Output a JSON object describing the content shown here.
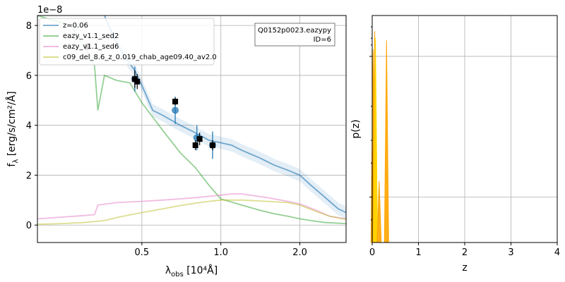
{
  "chart_data": [
    {
      "type": "line",
      "offset_label": "1e−8",
      "ylabel_main": "f",
      "ylabel_sub": "λ",
      "ylabel_units": " [erg/s/cm²/Å]",
      "xlabel_main": "λ",
      "xlabel_sub": "obs",
      "xlabel_units": " [10⁴Å]",
      "xscale": "log",
      "xlim": [
        0.2,
        3.0
      ],
      "ylim": [
        -0.7,
        8.4
      ],
      "x_ticks": [
        {
          "v": 0.5,
          "label": "0.5"
        },
        {
          "v": 1.0,
          "label": "1.0"
        },
        {
          "v": 2.0,
          "label": "2.0"
        }
      ],
      "y_ticks": [
        {
          "v": 0,
          "label": "0"
        },
        {
          "v": 2,
          "label": "2"
        },
        {
          "v": 4,
          "label": "4"
        },
        {
          "v": 6,
          "label": "6"
        },
        {
          "v": 8,
          "label": "8"
        }
      ],
      "grid": true,
      "legend_position": "upper-left",
      "annotation": {
        "line1": "Q0152p0023.eazypy",
        "line2": "ID=6"
      },
      "series": [
        {
          "name": "z=0.06",
          "color": "#1f77b4",
          "x": [
            0.36,
            0.4,
            0.44,
            0.47,
            0.5,
            0.55,
            0.6,
            0.7,
            0.8,
            0.9,
            1.0,
            1.1,
            1.2,
            1.4,
            1.6,
            1.8,
            2.0,
            2.2,
            2.5,
            2.8,
            3.0
          ],
          "y": [
            8.5,
            7.3,
            6.6,
            6.2,
            5.6,
            4.6,
            4.4,
            4.0,
            3.7,
            3.4,
            3.3,
            3.2,
            3.0,
            2.7,
            2.4,
            2.2,
            2.0,
            1.6,
            1.1,
            0.65,
            0.5
          ],
          "band": 0.25
        },
        {
          "name": "eazy_v1.1_sed2",
          "color": "#2ca02c",
          "x": [
            0.2,
            0.27,
            0.33,
            0.34,
            0.36,
            0.4,
            0.45,
            0.5,
            0.6,
            0.7,
            0.8,
            0.9,
            1.0,
            1.2,
            1.4,
            1.6,
            1.8,
            2.0,
            2.2,
            2.5,
            3.0
          ],
          "y": [
            8.5,
            8.0,
            6.4,
            4.6,
            6.0,
            5.8,
            5.7,
            4.9,
            3.8,
            2.9,
            2.3,
            1.6,
            1.05,
            0.8,
            0.6,
            0.45,
            0.35,
            0.25,
            0.18,
            0.1,
            0.06
          ]
        },
        {
          "name": "eazy_v1.1_sed6",
          "color": "#e377c2",
          "x": [
            0.2,
            0.25,
            0.3,
            0.33,
            0.34,
            0.4,
            0.5,
            0.6,
            0.7,
            0.8,
            0.9,
            1.0,
            1.1,
            1.2,
            1.5,
            1.8,
            2.0,
            2.3,
            2.6,
            3.0
          ],
          "y": [
            0.25,
            0.32,
            0.38,
            0.42,
            0.8,
            0.9,
            0.95,
            1.0,
            1.05,
            1.1,
            1.15,
            1.2,
            1.25,
            1.25,
            1.1,
            0.95,
            0.85,
            0.6,
            0.35,
            0.25
          ]
        },
        {
          "name": "c09_del_8.6_z_0.019_chab_age09.40_av2.0",
          "color": "#bcbd22",
          "x": [
            0.2,
            0.25,
            0.3,
            0.36,
            0.4,
            0.5,
            0.6,
            0.7,
            0.8,
            0.9,
            1.0,
            1.2,
            1.5,
            1.8,
            2.0,
            2.3,
            2.6,
            3.0
          ],
          "y": [
            0.03,
            0.06,
            0.1,
            0.18,
            0.3,
            0.5,
            0.65,
            0.78,
            0.88,
            0.95,
            1.0,
            1.0,
            0.95,
            0.9,
            0.8,
            0.55,
            0.35,
            0.22
          ]
        }
      ],
      "observed_points": [
        {
          "x": 0.31,
          "y": 7.15,
          "err": 0.15
        },
        {
          "x": 0.47,
          "y": 5.85,
          "err": 0.35
        },
        {
          "x": 0.48,
          "y": 5.75,
          "err": 0.3
        },
        {
          "x": 0.67,
          "y": 4.95,
          "err": 0.15
        },
        {
          "x": 0.8,
          "y": 3.2,
          "err": 0.2
        },
        {
          "x": 0.83,
          "y": 3.45,
          "err": 0.25
        },
        {
          "x": 0.93,
          "y": 3.2,
          "err": 0.2
        }
      ],
      "model_points": [
        {
          "x": 0.47,
          "y": 5.85,
          "err": 0.5
        },
        {
          "x": 0.67,
          "y": 4.6,
          "err": 0.55
        },
        {
          "x": 0.81,
          "y": 3.5,
          "err": 0.5
        },
        {
          "x": 0.93,
          "y": 3.2,
          "err": 0.55
        }
      ],
      "colors": {
        "observed": "#000000",
        "model": "#1f77b4",
        "grid": "#b0b0b0"
      }
    },
    {
      "type": "line",
      "xlabel": "z",
      "ylabel": "p(z)",
      "yscale": "log",
      "xlim": [
        0,
        4
      ],
      "x_ticks": [
        {
          "v": 0,
          "label": "0"
        },
        {
          "v": 1,
          "label": "1"
        },
        {
          "v": 2,
          "label": "2"
        },
        {
          "v": 3,
          "label": "3"
        },
        {
          "v": 4,
          "label": "4"
        }
      ],
      "grid": true,
      "peaks": [
        {
          "z": 0.02,
          "p": 0.85,
          "color": "#ffa500"
        },
        {
          "z": 0.055,
          "p": 0.93,
          "color": "#ffa500"
        },
        {
          "z": 0.07,
          "p": 0.9,
          "color": "#ffd700"
        },
        {
          "z": 0.15,
          "p": 0.27,
          "color": "#ffa500"
        },
        {
          "z": 0.31,
          "p": 0.89,
          "color": "#ffa500"
        }
      ]
    }
  ]
}
